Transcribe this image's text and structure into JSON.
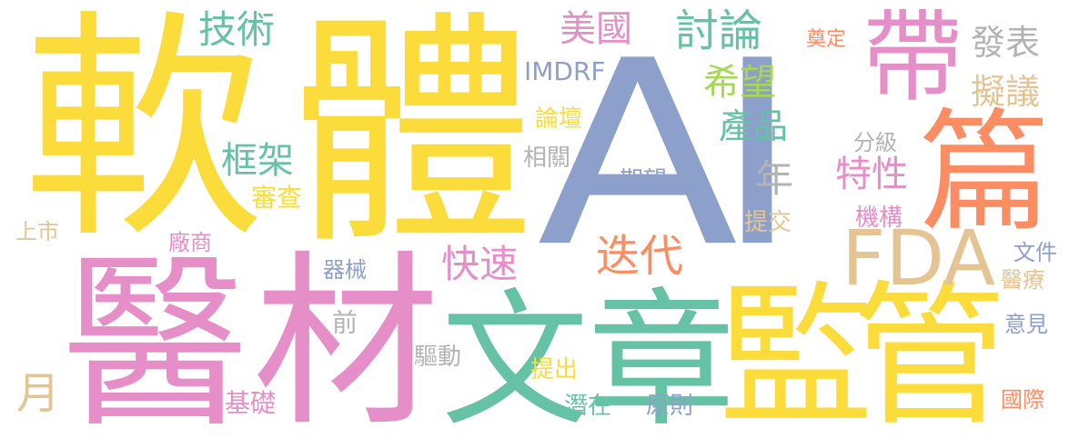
{
  "palette": {
    "yellow": "#fcdc3a",
    "pink": "#e68ec8",
    "green": "#66c2a5",
    "blue": "#8da0cb",
    "orange": "#fc8d62",
    "lime": "#a6d854",
    "tan": "#e5c494",
    "gray": "#b3b3b3"
  },
  "words": {
    "ai": "AI",
    "ruan": "軟",
    "ti": "體",
    "yi": "醫",
    "cai": "材",
    "wen": "文",
    "zhang": "章",
    "jian": "監",
    "guan": "管",
    "dai": "帶",
    "pian": "篇",
    "fda": "FDA",
    "jishu": "技術",
    "meiguo": "美國",
    "taolun": "討論",
    "fabiao": "發表",
    "nyi": "擬議",
    "xiwang": "希望",
    "chanpin": "產品",
    "imdrf": "IMDRF",
    "dianding": "奠定",
    "luntan": "論壇",
    "kuangjia": "框架",
    "shencha": "審查",
    "fenji": "分級",
    "texing": "特性",
    "nian": "年",
    "xiangguan": "相關",
    "qiwang": "期望",
    "jigou": "機構",
    "tijiao": "提交",
    "shangshi": "上市",
    "changshang": "廠商",
    "kuaisu": "快速",
    "diedai": "迭代",
    "qixie": "器械",
    "wenjian": "文件",
    "yiliao": "醫療",
    "qian": "前",
    "yijian": "意見",
    "qudong": "驅動",
    "tichu": "提出",
    "yue": "月",
    "jichu": "基礎",
    "qianzai": "潛在",
    "yuanze": "原則",
    "guoji": "國際"
  }
}
